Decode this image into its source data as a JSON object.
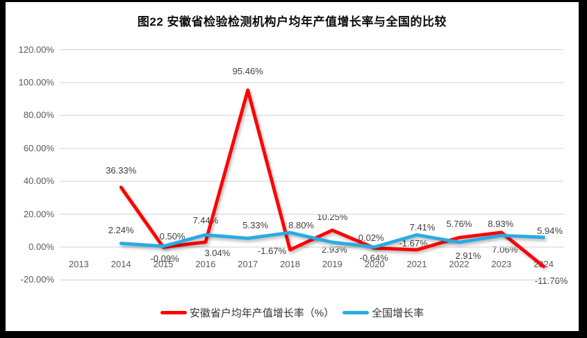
{
  "title": "图22  安徽省检验检测机构户均年产值增长率与全国的比较",
  "colors": {
    "anhui_line": "#FF0000",
    "national_line": "#29ABE2",
    "gridline": "#D9D9D9",
    "axis_text": "#595959",
    "data_label_text": "#404040",
    "title_text": "#0d0d0d",
    "frame": "#000000",
    "panel_background": "#FFFFFF"
  },
  "chart_data": {
    "type": "line",
    "title": "图22  安徽省检验检测机构户均年产值增长率与全国的比较",
    "categories": [
      "2013",
      "2014",
      "2015",
      "2016",
      "2017",
      "2018",
      "2019",
      "2020",
      "2021",
      "2022",
      "2023",
      "2024"
    ],
    "series": [
      {
        "name": "安徽省户均年产值增长率（%）",
        "color": "#FF0000",
        "values": [
          null,
          36.33,
          -0.09,
          3.04,
          95.46,
          -1.67,
          10.25,
          -0.64,
          -1.67,
          5.76,
          8.93,
          -11.76
        ]
      },
      {
        "name": "全国增长率",
        "color": "#29ABE2",
        "values": [
          null,
          2.24,
          0.5,
          7.44,
          5.33,
          8.8,
          2.93,
          0.02,
          7.41,
          2.91,
          7.06,
          5.94
        ]
      }
    ],
    "y_axis": {
      "ticks": [
        "120.00%",
        "100.00%",
        "80.00%",
        "60.00%",
        "40.00%",
        "20.00%",
        "0.00%",
        "-20.00%"
      ],
      "tick_values": [
        120,
        100,
        80,
        60,
        40,
        20,
        0,
        -20
      ],
      "min": -20,
      "max": 120,
      "format": "percent_2dp"
    },
    "grid": true,
    "legend_position": "bottom",
    "data_labels_shown": true
  },
  "legend": {
    "items": [
      {
        "label": "安徽省户均年产值增长率（%）"
      },
      {
        "label": "全国增长率"
      }
    ]
  }
}
